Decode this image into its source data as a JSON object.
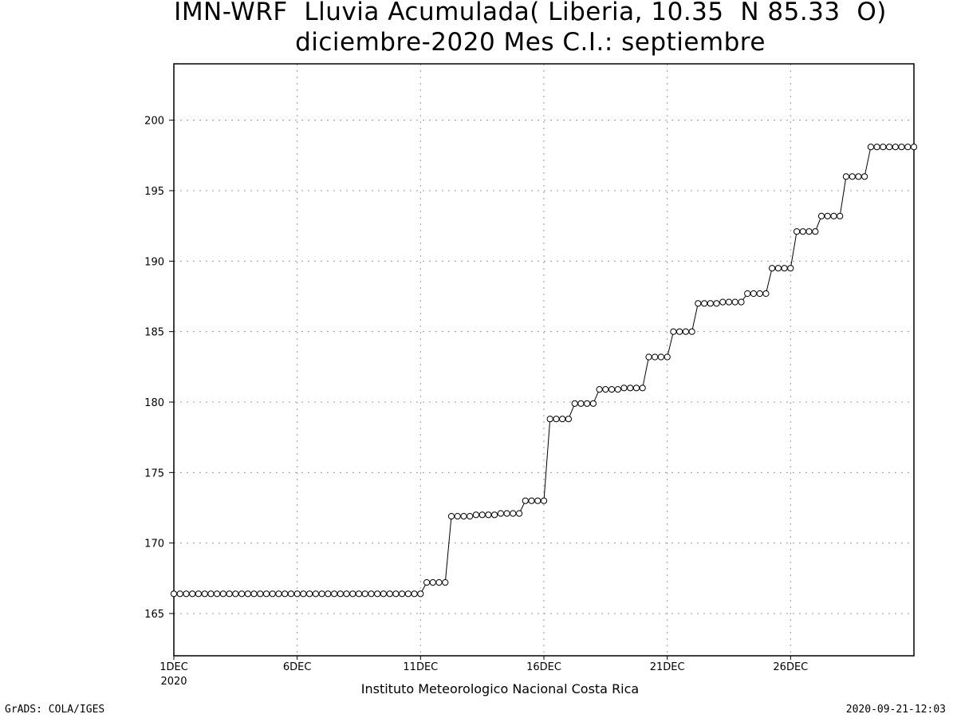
{
  "chart_data": {
    "type": "line",
    "title": "IMN-WRF  Lluvia Acumulada( Liberia, 10.35  N 85.33  O)",
    "subtitle": "diciembre-2020 Mes C.I.: septiembre",
    "xlabel": "Instituto Meteorologico Nacional Costa Rica",
    "ylabel": "",
    "x_tick_labels": [
      "1DEC",
      "6DEC",
      "11DEC",
      "16DEC",
      "21DEC",
      "26DEC"
    ],
    "x_tick_days": [
      1,
      6,
      11,
      16,
      21,
      26
    ],
    "x_year_label": "2020",
    "xlim_days": [
      1,
      31
    ],
    "ylim": [
      162,
      204
    ],
    "y_ticks": [
      165,
      170,
      175,
      180,
      185,
      190,
      195,
      200
    ],
    "grid": true,
    "marker": "open-circle",
    "series": [
      {
        "values": [
          166.4,
          166.4,
          166.4,
          166.4,
          166.4,
          166.4,
          166.4,
          166.4,
          166.4,
          166.4,
          166.4,
          166.4,
          166.4,
          166.4,
          166.4,
          166.4,
          166.4,
          166.4,
          166.4,
          166.4,
          166.4,
          166.4,
          166.4,
          166.4,
          166.4,
          166.4,
          166.4,
          166.4,
          166.4,
          166.4,
          166.4,
          166.4,
          166.4,
          166.4,
          166.4,
          166.4,
          166.4,
          166.4,
          166.4,
          166.4,
          167.2,
          167.2,
          167.2,
          167.2,
          171.9,
          171.9,
          171.9,
          171.9,
          172.0,
          172.0,
          172.0,
          172.0,
          172.1,
          172.1,
          172.1,
          172.1,
          173.0,
          173.0,
          173.0,
          173.0,
          178.8,
          178.8,
          178.8,
          178.8,
          179.9,
          179.9,
          179.9,
          179.9,
          180.9,
          180.9,
          180.9,
          180.9,
          181.0,
          181.0,
          181.0,
          181.0,
          183.2,
          183.2,
          183.2,
          183.2,
          185.0,
          185.0,
          185.0,
          185.0,
          187.0,
          187.0,
          187.0,
          187.0,
          187.1,
          187.1,
          187.1,
          187.1,
          187.7,
          187.7,
          187.7,
          187.7,
          189.5,
          189.5,
          189.5,
          189.5,
          192.1,
          192.1,
          192.1,
          192.1,
          193.2,
          193.2,
          193.2,
          193.2,
          196.0,
          196.0,
          196.0,
          196.0,
          198.1,
          198.1,
          198.1,
          198.1,
          198.1,
          198.1,
          198.1,
          198.1
        ]
      }
    ],
    "x_step_days": 0.25
  },
  "footer": {
    "credit": "GrADS: COLA/IGES",
    "timestamp": "2020-09-21-12:03"
  }
}
